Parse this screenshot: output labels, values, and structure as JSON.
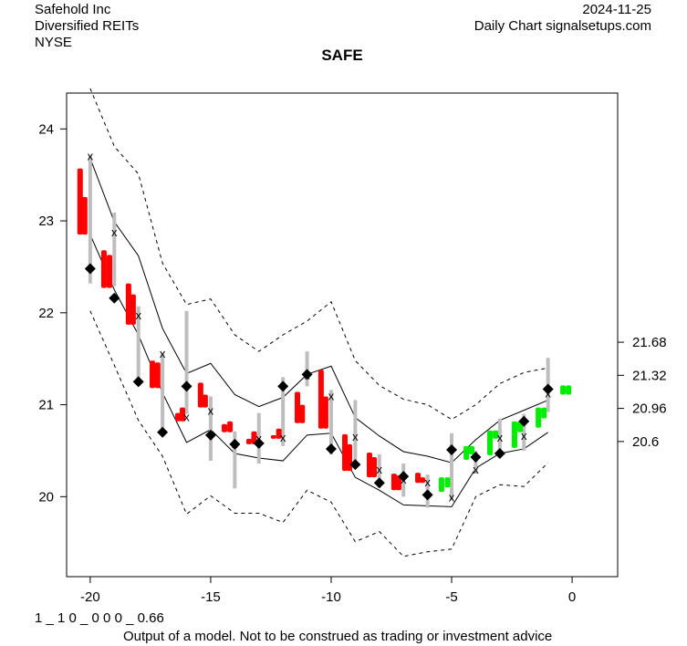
{
  "header": {
    "company": "Safehold Inc",
    "sector": "Diversified REITs",
    "exchange": "NYSE",
    "date": "2024-11-25",
    "source": "Daily Chart signalsetups.com"
  },
  "footer": {
    "model_code": "1 _ 1 0 _ 0 0 0 _ 0.66",
    "disclaimer": "Output of a model. Not to be construed as trading or investment advice"
  },
  "colors": {
    "down": "#ff0000",
    "up": "#00ee00",
    "range": "#bebebe",
    "band": "#000000"
  },
  "chart_data": {
    "type": "candlestick-with-bands",
    "title": "SAFE",
    "xlim": [
      -20.98,
      1.89
    ],
    "ylim": [
      19.13,
      24.39
    ],
    "x_ticks": [
      -20,
      -15,
      -10,
      -5,
      0
    ],
    "y_ticks": [
      20,
      21,
      22,
      23,
      24
    ],
    "right_ticks": [
      21.68,
      21.32,
      20.96,
      20.6
    ],
    "weeks": {
      "x": [
        -20,
        -19,
        -18,
        -17,
        -16,
        -15,
        -14,
        -13,
        -12,
        -11,
        -10,
        -9,
        -8,
        -7,
        -6,
        -5,
        -4,
        -3,
        -2,
        -1
      ],
      "high": [
        23.71,
        23.09,
        22.07,
        21.56,
        22.02,
        21.09,
        20.71,
        20.91,
        21.3,
        21.58,
        21.16,
        21.05,
        20.46,
        20.36,
        20.24,
        20.69,
        20.5,
        20.85,
        20.9,
        21.51
      ],
      "low": [
        22.32,
        22.29,
        21.25,
        20.7,
        20.9,
        20.39,
        20.09,
        20.36,
        20.55,
        21.2,
        20.46,
        20.34,
        20.1,
        20.0,
        19.88,
        19.96,
        20.25,
        20.43,
        20.5,
        20.92
      ],
      "diamond": [
        22.48,
        22.16,
        21.25,
        20.7,
        21.2,
        20.67,
        20.57,
        20.58,
        21.2,
        21.33,
        20.52,
        20.35,
        20.15,
        20.22,
        20.02,
        20.51,
        20.43,
        20.47,
        20.82,
        21.17
      ],
      "xmark": [
        23.71,
        22.88,
        21.98,
        21.56,
        20.87,
        20.94,
        20.58,
        20.64,
        20.65,
        21.33,
        21.1,
        20.66,
        20.3,
        20.19,
        20.16,
        20.0,
        20.3,
        20.65,
        20.67,
        21.13
      ]
    },
    "bands": {
      "upper_outer": [
        24.44,
        23.81,
        23.51,
        22.54,
        22.09,
        22.15,
        21.76,
        21.58,
        21.76,
        21.91,
        22.12,
        21.48,
        21.21,
        21.06,
        21.0,
        20.84,
        21.0,
        21.23,
        21.35,
        21.4
      ],
      "upper_inner": [
        23.68,
        22.99,
        22.62,
        21.83,
        21.34,
        21.45,
        21.11,
        20.98,
        21.08,
        21.33,
        21.42,
        20.86,
        20.66,
        20.49,
        20.44,
        20.37,
        20.62,
        20.83,
        20.94,
        21.05
      ],
      "lower_inner": [
        22.85,
        22.25,
        21.76,
        21.13,
        20.59,
        20.73,
        20.47,
        20.42,
        20.39,
        20.67,
        20.69,
        20.21,
        20.07,
        19.91,
        19.9,
        19.89,
        20.31,
        20.47,
        20.52,
        20.7
      ],
      "lower_outer": [
        22.02,
        21.43,
        20.83,
        20.44,
        19.81,
        20.01,
        19.82,
        19.82,
        19.72,
        20.07,
        19.94,
        19.51,
        19.62,
        19.35,
        19.4,
        19.43,
        20.0,
        20.13,
        20.11,
        20.37
      ]
    },
    "candles": [
      [
        -20.42,
        23.56,
        22.86,
        "down"
      ],
      [
        -20.23,
        23.25,
        22.86,
        "down"
      ],
      [
        -19.43,
        22.67,
        22.28,
        "down"
      ],
      [
        -19.2,
        22.62,
        22.28,
        "down"
      ],
      [
        -18.41,
        22.31,
        21.88,
        "down"
      ],
      [
        -18.22,
        22.19,
        21.88,
        "down"
      ],
      [
        -17.42,
        21.47,
        21.19,
        "down"
      ],
      [
        -17.2,
        21.45,
        21.19,
        "down"
      ],
      [
        -16.36,
        20.9,
        20.83,
        "down"
      ],
      [
        -16.17,
        20.96,
        20.83,
        "down"
      ],
      [
        -15.42,
        21.23,
        20.98,
        "down"
      ],
      [
        -15.23,
        21.1,
        20.98,
        "down"
      ],
      [
        -14.43,
        20.78,
        20.71,
        "down"
      ],
      [
        -14.2,
        20.81,
        20.71,
        "down"
      ],
      [
        -13.41,
        20.62,
        20.58,
        "down"
      ],
      [
        -13.2,
        20.7,
        20.58,
        "down"
      ],
      [
        -12.39,
        20.66,
        20.64,
        "down"
      ],
      [
        -12.17,
        20.73,
        20.64,
        "down"
      ],
      [
        -11.4,
        21.13,
        20.81,
        "down"
      ],
      [
        -11.2,
        20.99,
        20.81,
        "down"
      ],
      [
        -10.42,
        21.37,
        20.75,
        "down"
      ],
      [
        -10.23,
        21.08,
        20.75,
        "down"
      ],
      [
        -9.43,
        20.67,
        20.29,
        "down"
      ],
      [
        -9.24,
        20.56,
        20.29,
        "down"
      ],
      [
        -8.41,
        20.47,
        20.22,
        "down"
      ],
      [
        -8.22,
        20.42,
        20.22,
        "down"
      ],
      [
        -7.39,
        20.24,
        20.08,
        "down"
      ],
      [
        -7.2,
        20.22,
        20.08,
        "down"
      ],
      [
        -6.4,
        20.25,
        20.16,
        "down"
      ],
      [
        -6.21,
        20.2,
        20.16,
        "down"
      ],
      [
        -5.42,
        20.2,
        20.06,
        "up"
      ],
      [
        -5.17,
        20.2,
        20.11,
        "up"
      ],
      [
        -4.39,
        20.54,
        20.41,
        "up"
      ],
      [
        -4.17,
        20.54,
        20.47,
        "up"
      ],
      [
        -3.41,
        20.71,
        20.46,
        "up"
      ],
      [
        -3.18,
        20.71,
        20.64,
        "up"
      ],
      [
        -2.39,
        20.81,
        20.54,
        "up"
      ],
      [
        -2.16,
        20.81,
        20.71,
        "up"
      ],
      [
        -1.4,
        20.96,
        20.76,
        "up"
      ],
      [
        -1.17,
        20.96,
        20.86,
        "up"
      ],
      [
        -0.38,
        21.2,
        21.12,
        "up"
      ],
      [
        -0.15,
        21.2,
        21.12,
        "up"
      ]
    ]
  }
}
